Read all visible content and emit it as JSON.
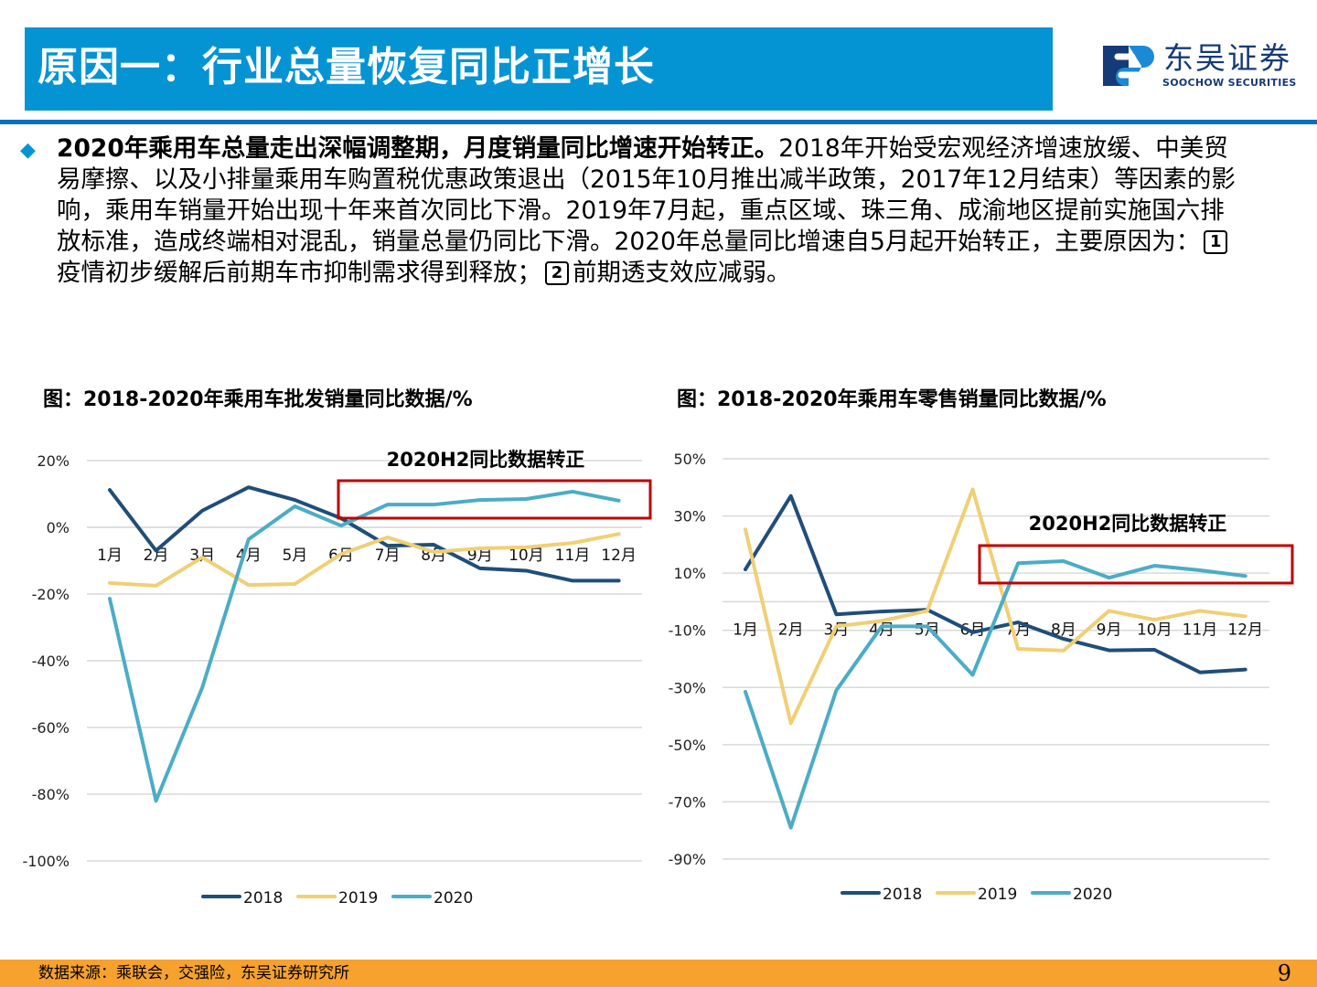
{
  "header": {
    "title": "原因一：行业总量恢复同比正增长"
  },
  "logo": {
    "cn": "东吴证券",
    "en": "SOOCHOW SECURITIES"
  },
  "bullet": {
    "icon": "diamond-bullet-icon",
    "line1_bold": "2020年乘用车总量走出深幅调整期，月度销量同比增速开始转正。",
    "line1_text": "2018年开始受宏观经济增速放缓、中美贸",
    "line2": "易摩擦、以及小排量乘用车购置税优惠政策退出（2015年10月推出减半政策，2017年12月结束）等因素的影",
    "line3": "响，乘用车销量开始出现十年来首次同比下滑。2019年7月起，重点区域、珠三角、成渝地区提前实施国六排",
    "line4": "放标准，造成终端相对混乱，销量总量仍同比下滑。2020年总量同比增速自5月起开始转正，主要原因为：",
    "box1": "1",
    "line5a": "疫情初步缓解后前期车市抑制需求得到释放；",
    "box2": "2",
    "line5b": "前期透支效应减弱。"
  },
  "colors": {
    "2018": "#1f4e79",
    "2019": "#f0cf75",
    "2020": "#4bacc6",
    "highlight": "#c00000"
  },
  "chart_data": [
    {
      "type": "line",
      "title": "图：2018-2020年乘用车批发销量同比数据/%",
      "categories": [
        "1月",
        "2月",
        "3月",
        "4月",
        "5月",
        "6月",
        "7月",
        "8月",
        "9月",
        "10月",
        "11月",
        "12月"
      ],
      "ylim": [
        -100,
        20
      ],
      "yticks": [
        20,
        0,
        -20,
        -40,
        -60,
        -80,
        -100
      ],
      "ytick_labels": [
        "20%",
        "0%",
        "-20%",
        "-40%",
        "-60%",
        "-80%",
        "-100%"
      ],
      "annotation": "2020H2同比数据转正",
      "legend": "bottom",
      "series": [
        {
          "name": "2018",
          "values": [
            11.2,
            -7,
            5,
            12,
            8.2,
            2.7,
            -5.5,
            -5.2,
            -12.3,
            -13,
            -16,
            -16
          ]
        },
        {
          "name": "2019",
          "values": [
            -16.7,
            -17.5,
            -9,
            -17.3,
            -17,
            -8,
            -3,
            -7.4,
            -6.3,
            -6,
            -4.7,
            -2
          ]
        },
        {
          "name": "2020",
          "values": [
            -21.4,
            -82,
            -48,
            -3.6,
            6.3,
            0.5,
            6.8,
            6.8,
            8.2,
            8.5,
            10.7,
            8
          ]
        }
      ]
    },
    {
      "type": "line",
      "title": "图：2018-2020年乘用车零售销量同比数据/%",
      "categories": [
        "1月",
        "2月",
        "3月",
        "4月",
        "5月",
        "6月",
        "7月",
        "8月",
        "9月",
        "10月",
        "11月",
        "12月"
      ],
      "ylim": [
        -90,
        50
      ],
      "yticks": [
        50,
        30,
        10,
        -10,
        -30,
        -50,
        -70,
        -90
      ],
      "ytick_labels": [
        "50%",
        "30%",
        "10%",
        "-10%",
        "-30%",
        "-50%",
        "-70%",
        "-90%"
      ],
      "annotation": "2020H2同比数据转正",
      "legend": "bottom",
      "series": [
        {
          "name": "2018",
          "values": [
            11.3,
            37,
            -4.4,
            -3.4,
            -2.8,
            -10.7,
            -7.2,
            -13,
            -17,
            -16.8,
            -24.7,
            -23.7
          ]
        },
        {
          "name": "2019",
          "values": [
            25.3,
            -42.5,
            -8.6,
            -6.7,
            -3.2,
            39.3,
            -16.5,
            -17.1,
            -3.2,
            -6.3,
            -3.2,
            -5.1
          ]
        },
        {
          "name": "2020",
          "values": [
            -31.5,
            -79,
            -31,
            -8.6,
            -8.6,
            -25.6,
            13.5,
            14.2,
            8.4,
            12.6,
            11,
            9
          ]
        }
      ]
    }
  ],
  "footer": {
    "source": "数据来源：乘联会，交强险，东吴证券研究所",
    "page": "9"
  }
}
